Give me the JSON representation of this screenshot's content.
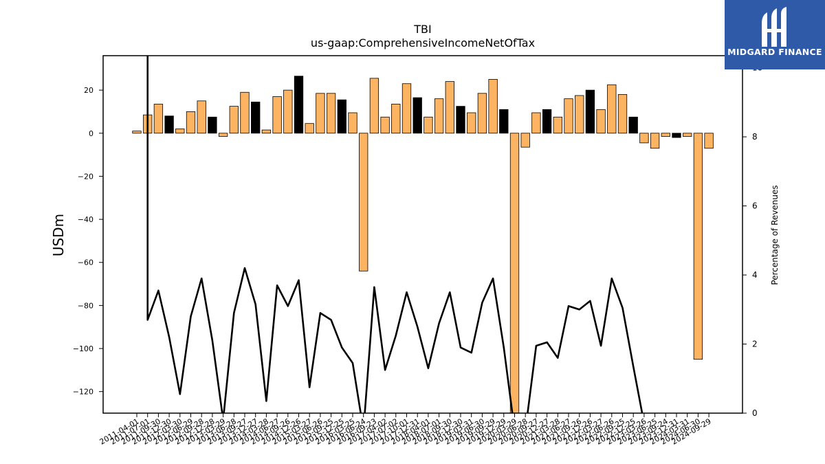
{
  "logo": {
    "text": "MIDGARD FINANCE",
    "icon": "midgard-logo-icon",
    "background": "#2f5aa8"
  },
  "chart_data": {
    "type": "bar",
    "title": "TBI",
    "subtitle": "us-gaap:ComprehensiveIncomeNetOfTax",
    "ylabel": "USDm",
    "y2label": "Percentage of Revenues",
    "ylim": [
      -130,
      36
    ],
    "y2lim": [
      0,
      10.35
    ],
    "yticks": [
      20,
      0,
      -20,
      -40,
      -60,
      -80,
      -100,
      -120
    ],
    "y2ticks": [
      0,
      2,
      4,
      6,
      8,
      10
    ],
    "bar_colors": {
      "orange": "#fdb462",
      "black": "#000000"
    },
    "categories": [
      "2011-04-01",
      "2011-07-01",
      "2011-09-30",
      "2011-12-30",
      "2012-03-30",
      "2012-06-29",
      "2012-09-28",
      "2012-12-28",
      "2013-03-29",
      "2013-06-28",
      "2013-09-27",
      "2013-12-27",
      "2014-03-28",
      "2014-06-27",
      "2014-09-26",
      "2014-12-26",
      "2015-03-27",
      "2015-06-26",
      "2015-09-25",
      "2015-12-25",
      "2016-03-25",
      "2016-06-24",
      "2016-09-23",
      "2017-04-02",
      "2017-07-02",
      "2017-10-01",
      "2017-12-31",
      "2018-04-01",
      "2018-07-01",
      "2018-09-30",
      "2018-12-30",
      "2019-03-31",
      "2019-06-30",
      "2019-09-29",
      "2019-12-29",
      "2020-03-29",
      "2020-06-28",
      "2020-09-27",
      "2020-12-27",
      "2021-03-28",
      "2021-06-27",
      "2021-09-26",
      "2021-12-26",
      "2022-03-27",
      "2022-06-26",
      "2022-09-25",
      "2022-12-25",
      "2023-03-26",
      "2023-06-25",
      "2023-09-24",
      "2023-12-31",
      "2024-03-31",
      "2024-06-30",
      "2024-09-29"
    ],
    "series": [
      {
        "values": [
          1,
          8.5,
          13.5,
          8,
          2,
          10,
          15,
          7.5,
          -1.5,
          12.5,
          19,
          14.5,
          1.5,
          17,
          20,
          26.5,
          4.5,
          18.5,
          18.5,
          15.5,
          9.5,
          -64,
          25.5,
          7.5,
          13.5,
          23,
          16.5,
          7.5,
          16,
          24,
          12.5,
          9.5,
          18.5,
          25,
          11,
          -130,
          -6.5,
          9.5,
          11,
          7.5,
          16,
          17.5,
          20,
          11,
          22.5,
          18,
          7.5,
          -4.5,
          -7,
          -1.5,
          -2,
          -1.5,
          -105,
          -7
        ],
        "colors": [
          "orange",
          "orange",
          "orange",
          "black",
          "orange",
          "orange",
          "orange",
          "black",
          "orange",
          "orange",
          "orange",
          "black",
          "orange",
          "orange",
          "orange",
          "black",
          "orange",
          "orange",
          "orange",
          "black",
          "orange",
          "orange",
          "orange",
          "orange",
          "orange",
          "orange",
          "black",
          "orange",
          "orange",
          "orange",
          "black",
          "orange",
          "orange",
          "orange",
          "black",
          "orange",
          "orange",
          "orange",
          "black",
          "orange",
          "orange",
          "orange",
          "black",
          "orange",
          "orange",
          "orange",
          "black",
          "orange",
          "orange",
          "orange",
          "black",
          "orange",
          "orange",
          "orange"
        ]
      },
      {
        "axis": "right",
        "line_start_value": 10.35,
        "values": [
          null,
          2.7,
          3.55,
          2.2,
          0.55,
          2.8,
          3.9,
          2.1,
          -0.2,
          2.9,
          4.2,
          3.15,
          0.35,
          3.7,
          3.1,
          3.85,
          0.75,
          2.9,
          2.7,
          1.9,
          1.45,
          -0.5,
          3.65,
          1.25,
          2.25,
          3.5,
          2.5,
          1.3,
          2.6,
          3.5,
          1.9,
          1.75,
          3.2,
          3.9,
          1.9,
          -0.5,
          -0.5,
          1.95,
          2.05,
          1.6,
          3.1,
          3.0,
          3.25,
          1.95,
          3.9,
          3.05,
          1.35,
          -0.3,
          null,
          null,
          null,
          null,
          null,
          null
        ]
      }
    ],
    "legend": "none",
    "grid": false
  }
}
